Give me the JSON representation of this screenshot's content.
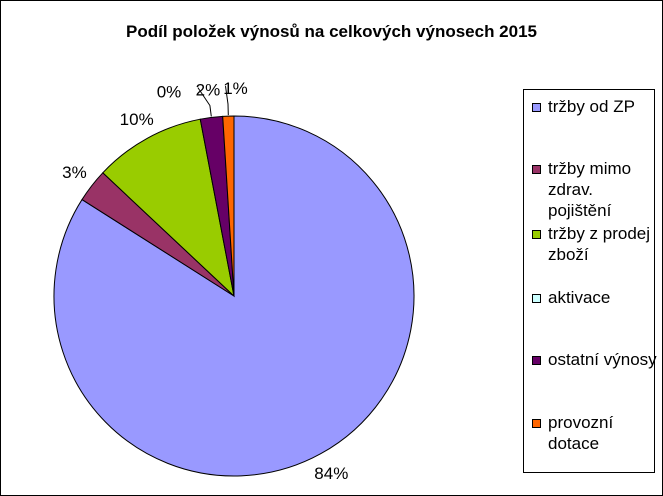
{
  "chart_data": {
    "type": "pie",
    "title": "Podíl položek výnosů na celkových výnosech 2015",
    "legend_position": "right",
    "slices": [
      {
        "label": "tržby od ZP",
        "value": 84,
        "value_label": "84%",
        "color": "#9999FF"
      },
      {
        "label": "tržby mimo zdrav. pojištění",
        "value": 3,
        "value_label": "3%",
        "color": "#993366"
      },
      {
        "label": "tržby z prodej zboží",
        "value": 10,
        "value_label": "10%",
        "color": "#99CC00"
      },
      {
        "label": "aktivace",
        "value": 0,
        "value_label": "0%",
        "color": "#CCFFFF"
      },
      {
        "label": "ostatní výnosy",
        "value": 2,
        "value_label": "2%",
        "color": "#660066"
      },
      {
        "label": "provozní dotace",
        "value": 1,
        "value_label": "1%",
        "color": "#FF6600"
      }
    ]
  }
}
